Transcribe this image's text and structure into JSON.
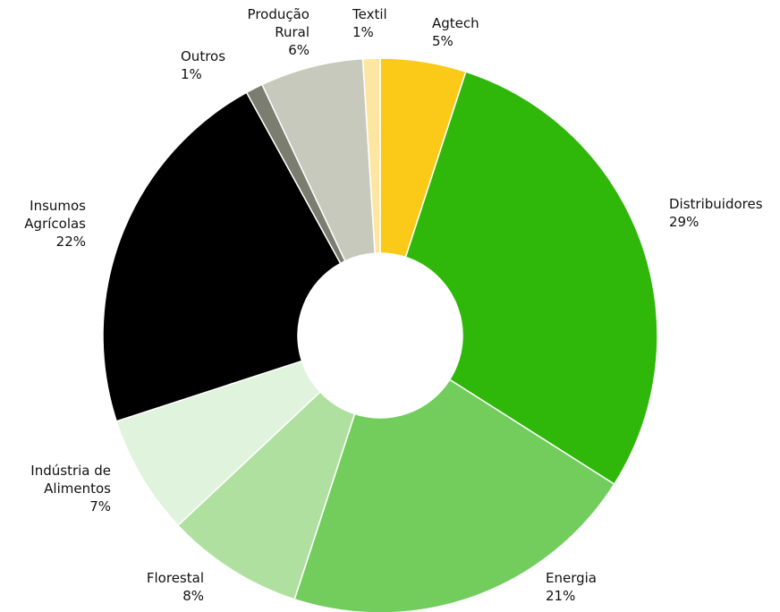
{
  "chart_data": {
    "type": "donut",
    "categories": [
      "Agtech",
      "Distribuidores",
      "Energia",
      "Florestal",
      "Indústria de Alimentos",
      "Insumos Agrícolas",
      "Outros",
      "Produção Rural",
      "Textil"
    ],
    "values": [
      5,
      29,
      21,
      8,
      7,
      22,
      1,
      6,
      1
    ],
    "value_labels": [
      "5%",
      "29%",
      "21%",
      "8%",
      "7%",
      "22%",
      "1%",
      "6%",
      "1%"
    ],
    "colors": [
      "#fbc918",
      "#2fb70a",
      "#72cd5d",
      "#b0e0a0",
      "#e0f3dc",
      "#000000",
      "#7b7d70",
      "#c8c9bd",
      "#fde6a2"
    ]
  }
}
